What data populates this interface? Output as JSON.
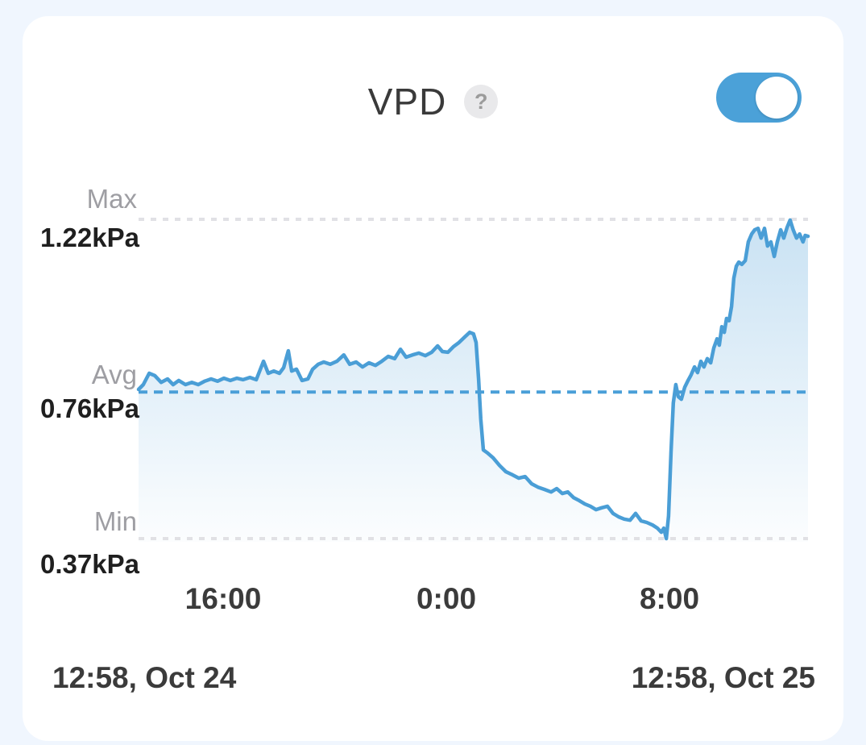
{
  "page": {
    "background": "#f0f6fe",
    "card_background": "#ffffff"
  },
  "header": {
    "title": "VPD",
    "help_icon_glyph": "?",
    "toggle": {
      "state": "on",
      "color": "#4ba1d8"
    }
  },
  "colors": {
    "line": "#4a9ed6",
    "avg_dash": "#4a9fd8",
    "grid_dash": "#e1e1e5",
    "fill_top": "rgba(77,159,216,0.30)",
    "fill_bottom": "rgba(77,159,216,0.02)"
  },
  "chart_data": {
    "type": "area",
    "title": "VPD",
    "unit": "kPa",
    "y_max": {
      "label": "Max",
      "value": "1.22kPa",
      "numeric": 1.22
    },
    "y_avg": {
      "label": "Avg",
      "value": "0.76kPa",
      "numeric": 0.76
    },
    "y_min": {
      "label": "Min",
      "value": "0.37kPa",
      "numeric": 0.37
    },
    "x_range_hours": 24,
    "x_ticks": [
      {
        "label": "16:00",
        "hour": 3.03
      },
      {
        "label": "0:00",
        "hour": 11.03
      },
      {
        "label": "8:00",
        "hour": 19.03
      }
    ],
    "start_label": "12:58, Oct 24",
    "end_label": "12:58, Oct 25",
    "grid": "horizontal-dashed-only",
    "legend": "none",
    "series": [
      {
        "name": "VPD",
        "points": [
          [
            0.0,
            0.767
          ],
          [
            0.17,
            0.78
          ],
          [
            0.38,
            0.81
          ],
          [
            0.58,
            0.804
          ],
          [
            0.81,
            0.786
          ],
          [
            1.04,
            0.795
          ],
          [
            1.24,
            0.78
          ],
          [
            1.44,
            0.791
          ],
          [
            1.68,
            0.78
          ],
          [
            1.91,
            0.786
          ],
          [
            2.14,
            0.78
          ],
          [
            2.37,
            0.789
          ],
          [
            2.6,
            0.795
          ],
          [
            2.83,
            0.789
          ],
          [
            3.06,
            0.797
          ],
          [
            3.29,
            0.791
          ],
          [
            3.52,
            0.797
          ],
          [
            3.75,
            0.793
          ],
          [
            3.99,
            0.799
          ],
          [
            4.22,
            0.793
          ],
          [
            4.48,
            0.842
          ],
          [
            4.65,
            0.81
          ],
          [
            4.85,
            0.816
          ],
          [
            5.05,
            0.81
          ],
          [
            5.2,
            0.825
          ],
          [
            5.37,
            0.87
          ],
          [
            5.49,
            0.816
          ],
          [
            5.66,
            0.821
          ],
          [
            5.86,
            0.791
          ],
          [
            6.07,
            0.795
          ],
          [
            6.24,
            0.821
          ],
          [
            6.44,
            0.834
          ],
          [
            6.64,
            0.84
          ],
          [
            6.87,
            0.834
          ],
          [
            7.11,
            0.842
          ],
          [
            7.36,
            0.859
          ],
          [
            7.57,
            0.834
          ],
          [
            7.8,
            0.84
          ],
          [
            8.03,
            0.827
          ],
          [
            8.26,
            0.838
          ],
          [
            8.49,
            0.831
          ],
          [
            8.72,
            0.842
          ],
          [
            8.95,
            0.855
          ],
          [
            9.18,
            0.849
          ],
          [
            9.39,
            0.874
          ],
          [
            9.59,
            0.853
          ],
          [
            9.82,
            0.859
          ],
          [
            10.05,
            0.864
          ],
          [
            10.28,
            0.857
          ],
          [
            10.51,
            0.866
          ],
          [
            10.72,
            0.883
          ],
          [
            10.89,
            0.868
          ],
          [
            11.09,
            0.866
          ],
          [
            11.29,
            0.881
          ],
          [
            11.49,
            0.892
          ],
          [
            11.7,
            0.907
          ],
          [
            11.87,
            0.919
          ],
          [
            12.01,
            0.915
          ],
          [
            12.1,
            0.892
          ],
          [
            12.19,
            0.795
          ],
          [
            12.27,
            0.688
          ],
          [
            12.36,
            0.606
          ],
          [
            12.51,
            0.598
          ],
          [
            12.71,
            0.585
          ],
          [
            12.94,
            0.565
          ],
          [
            13.17,
            0.548
          ],
          [
            13.4,
            0.54
          ],
          [
            13.63,
            0.531
          ],
          [
            13.86,
            0.535
          ],
          [
            14.09,
            0.516
          ],
          [
            14.32,
            0.507
          ],
          [
            14.55,
            0.501
          ],
          [
            14.79,
            0.494
          ],
          [
            14.99,
            0.503
          ],
          [
            15.19,
            0.49
          ],
          [
            15.39,
            0.494
          ],
          [
            15.6,
            0.479
          ],
          [
            15.8,
            0.471
          ],
          [
            16.0,
            0.462
          ],
          [
            16.2,
            0.456
          ],
          [
            16.4,
            0.447
          ],
          [
            16.6,
            0.452
          ],
          [
            16.81,
            0.456
          ],
          [
            17.01,
            0.437
          ],
          [
            17.21,
            0.428
          ],
          [
            17.41,
            0.422
          ],
          [
            17.62,
            0.419
          ],
          [
            17.82,
            0.437
          ],
          [
            18.02,
            0.417
          ],
          [
            18.22,
            0.413
          ],
          [
            18.43,
            0.406
          ],
          [
            18.6,
            0.398
          ],
          [
            18.74,
            0.387
          ],
          [
            18.83,
            0.398
          ],
          [
            18.92,
            0.37
          ],
          [
            19.0,
            0.43
          ],
          [
            19.09,
            0.602
          ],
          [
            19.17,
            0.731
          ],
          [
            19.26,
            0.78
          ],
          [
            19.35,
            0.748
          ],
          [
            19.46,
            0.741
          ],
          [
            19.58,
            0.773
          ],
          [
            19.7,
            0.791
          ],
          [
            19.81,
            0.806
          ],
          [
            19.93,
            0.827
          ],
          [
            20.04,
            0.812
          ],
          [
            20.16,
            0.842
          ],
          [
            20.27,
            0.827
          ],
          [
            20.39,
            0.849
          ],
          [
            20.51,
            0.838
          ],
          [
            20.62,
            0.877
          ],
          [
            20.74,
            0.902
          ],
          [
            20.82,
            0.885
          ],
          [
            20.91,
            0.934
          ],
          [
            21.0,
            0.919
          ],
          [
            21.08,
            0.956
          ],
          [
            21.17,
            0.95
          ],
          [
            21.26,
            0.988
          ],
          [
            21.34,
            1.063
          ],
          [
            21.43,
            1.095
          ],
          [
            21.52,
            1.106
          ],
          [
            21.63,
            1.1
          ],
          [
            21.75,
            1.11
          ],
          [
            21.86,
            1.16
          ],
          [
            21.98,
            1.181
          ],
          [
            22.09,
            1.192
          ],
          [
            22.21,
            1.196
          ],
          [
            22.32,
            1.17
          ],
          [
            22.44,
            1.196
          ],
          [
            22.55,
            1.149
          ],
          [
            22.67,
            1.16
          ],
          [
            22.79,
            1.121
          ],
          [
            22.9,
            1.16
          ],
          [
            23.02,
            1.192
          ],
          [
            23.13,
            1.17
          ],
          [
            23.25,
            1.198
          ],
          [
            23.36,
            1.218
          ],
          [
            23.47,
            1.192
          ],
          [
            23.59,
            1.17
          ],
          [
            23.7,
            1.181
          ],
          [
            23.82,
            1.16
          ],
          [
            23.9,
            1.177
          ],
          [
            24.0,
            1.175
          ]
        ]
      }
    ]
  }
}
